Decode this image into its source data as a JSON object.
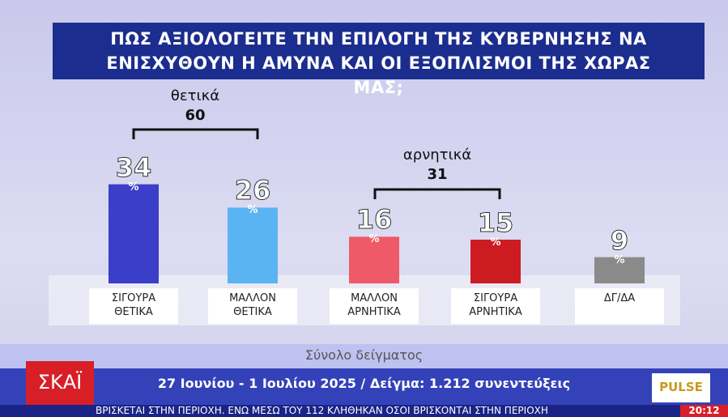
{
  "chart_data": {
    "type": "bar",
    "title": "ΠΩΣ ΑΞΙΟΛΟΓΕΙΤΕ ΤΗΝ ΕΠΙΛΟΓΗ ΤΗΣ ΚΥΒΕΡΝΗΣΗΣ ΝΑ ΕΝΙΣΧΥΘΟΥΝ Η ΑΜΥΝΑ ΚΑΙ ΟΙ ΕΞΟΠΛΙΣΜΟΙ ΤΗΣ ΧΩΡΑΣ ΜΑΣ;",
    "categories": [
      "ΣΙΓΟΥΡΑ ΘΕΤΙΚΑ",
      "ΜΑΛΛΟΝ ΘΕΤΙΚΑ",
      "ΜΑΛΛΟΝ ΑΡΝΗΤΙΚΑ",
      "ΣΙΓΟΥΡΑ ΑΡΝΗΤΙΚΑ",
      "ΔΓ/ΔΑ"
    ],
    "values": [
      34,
      26,
      16,
      15,
      9
    ],
    "colors": [
      "#3a3ec8",
      "#5ab4f2",
      "#ee5a68",
      "#cc1c22",
      "#8a8a8a"
    ],
    "unit": "%",
    "groups": [
      {
        "label": "θετικά",
        "value": 60
      },
      {
        "label": "αρνητικά",
        "value": 31
      }
    ]
  },
  "footer": {
    "subtitle": "Σύνολο δείγματος",
    "details": "27 Ιουνίου - 1 Ιουλίου 2025 / Δείγμα: 1.212 συνεντεύξεις",
    "source": "PULSE"
  },
  "broadcast": {
    "channel": "ΣΚΑΪ",
    "ticker": "ΒΡΙΣΚΕΤΑΙ ΣΤΗΝ ΠΕΡΙΟΧΗ. ΕΝΩ ΜΕΣΩ ΤΟΥ 112 ΚΛΗΘΗΚΑΝ ΟΣΟΙ ΒΡΙΣΚΟΝΤΑΙ ΣΤΗΝ ΠΕΡΙΟΧΗ",
    "time": "20:12"
  }
}
